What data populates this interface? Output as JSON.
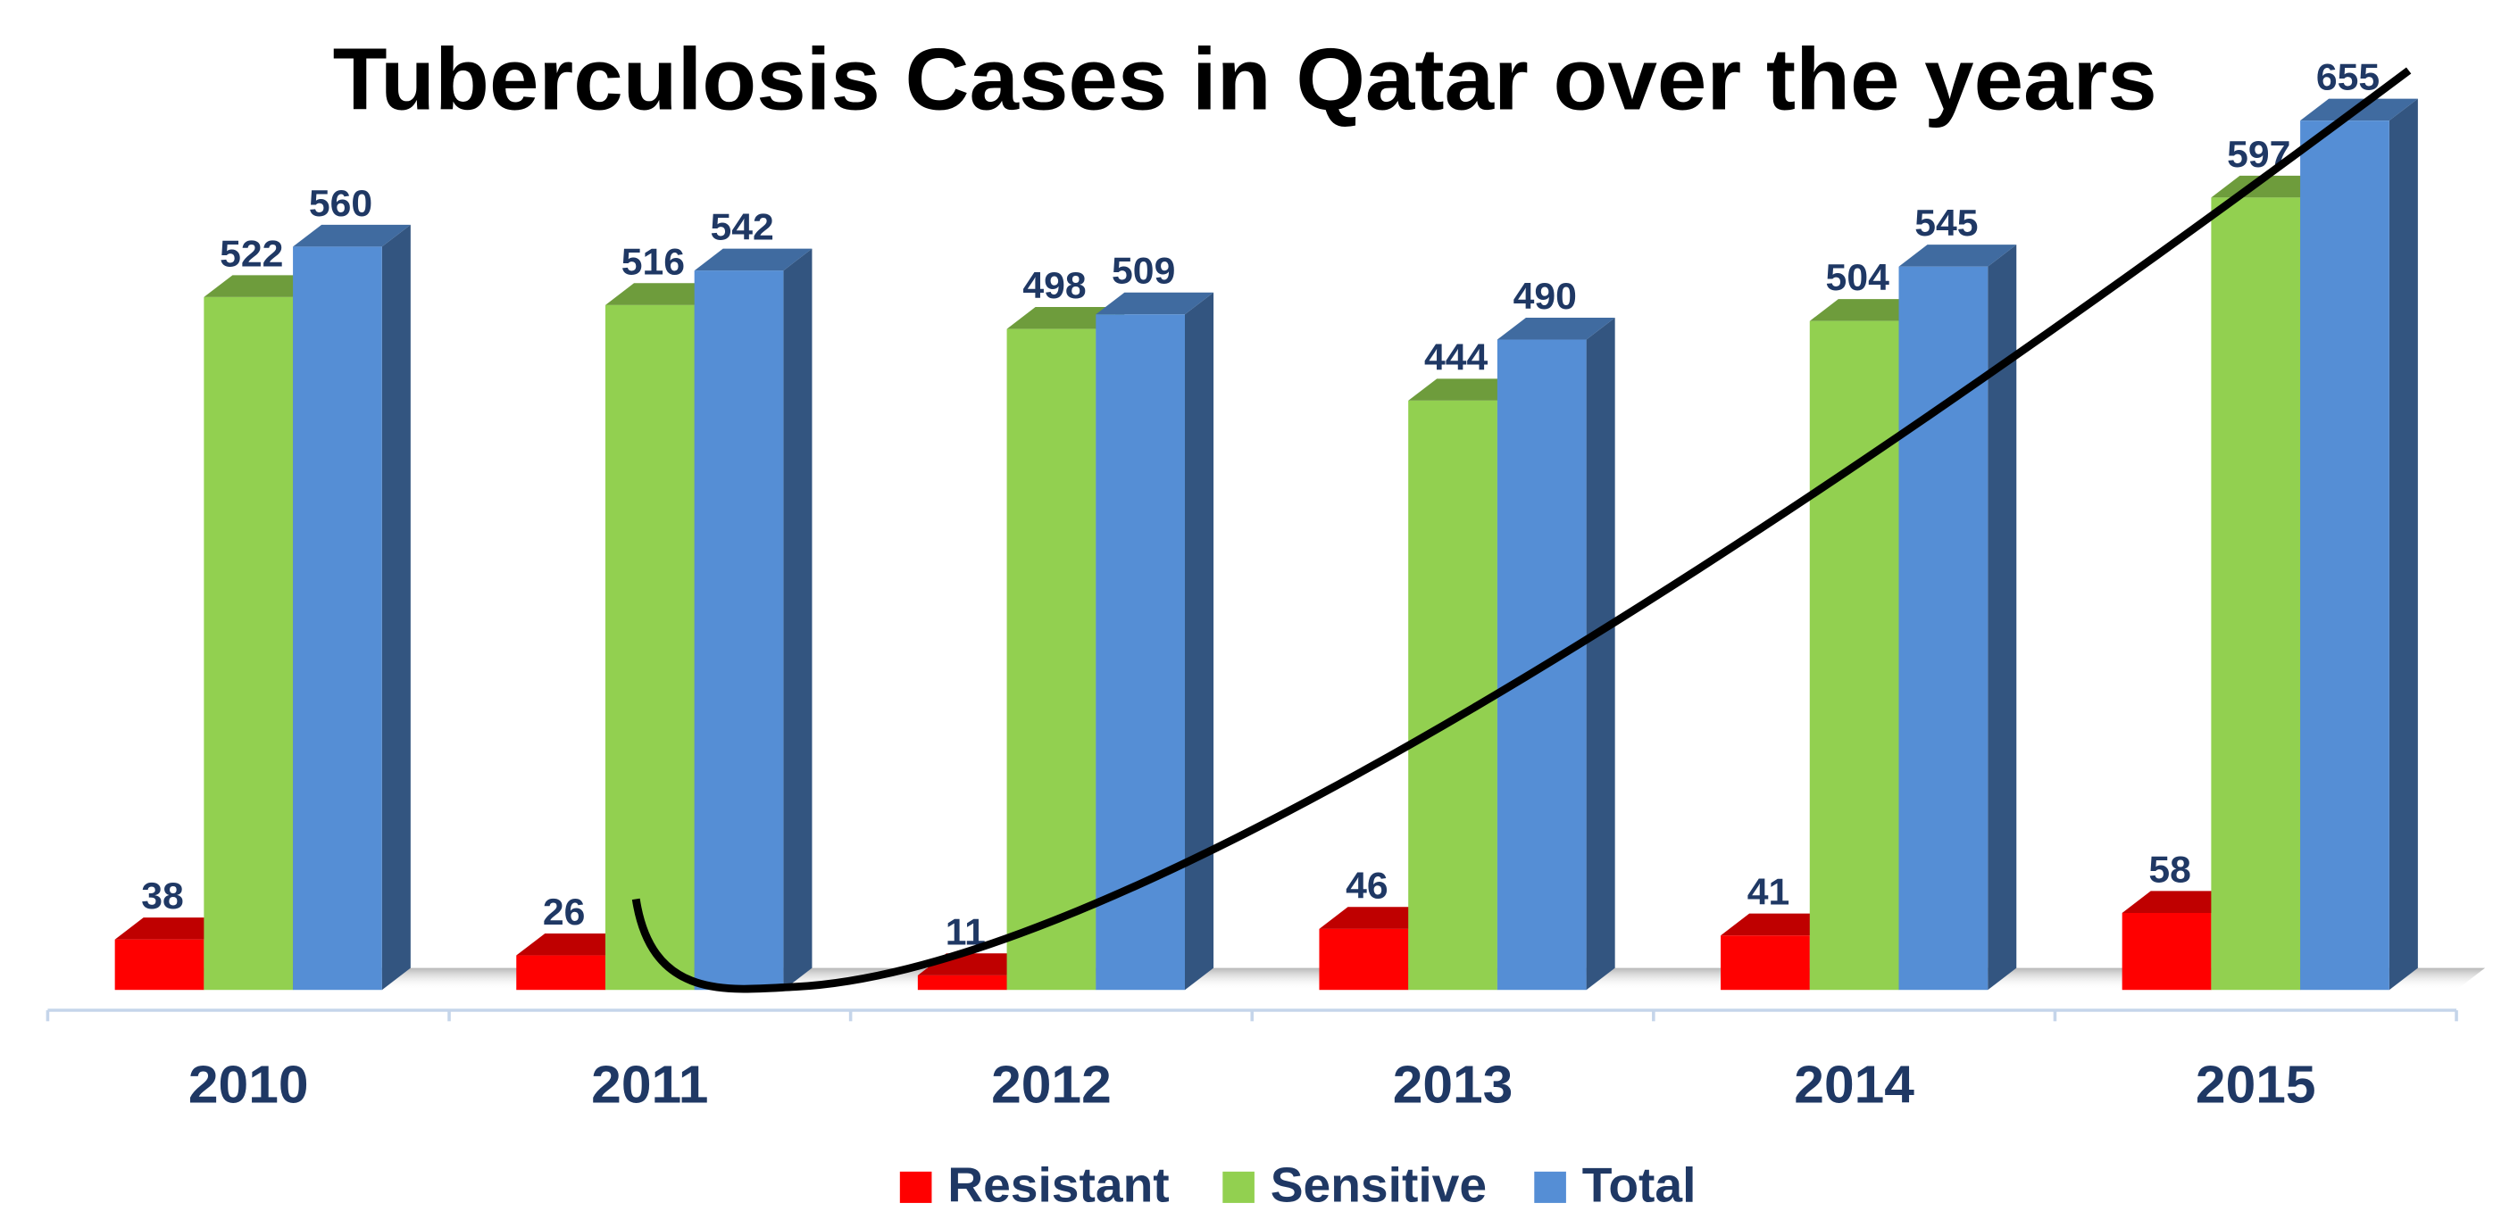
{
  "chart_data": {
    "type": "bar3d",
    "title": "Tuberculosis Cases in Qatar over the years",
    "categories": [
      "2010",
      "2011",
      "2012",
      "2013",
      "2014",
      "2015"
    ],
    "series": [
      {
        "name": "Resistant",
        "color": "#ff0000",
        "values": [
          38,
          26,
          11,
          46,
          41,
          58
        ]
      },
      {
        "name": "Sensitive",
        "color": "#92d050",
        "values": [
          522,
          516,
          498,
          444,
          504,
          597
        ]
      },
      {
        "name": "Total",
        "color": "#558ed5",
        "values": [
          560,
          542,
          509,
          490,
          545,
          655
        ]
      }
    ],
    "legend": "bottom"
  }
}
